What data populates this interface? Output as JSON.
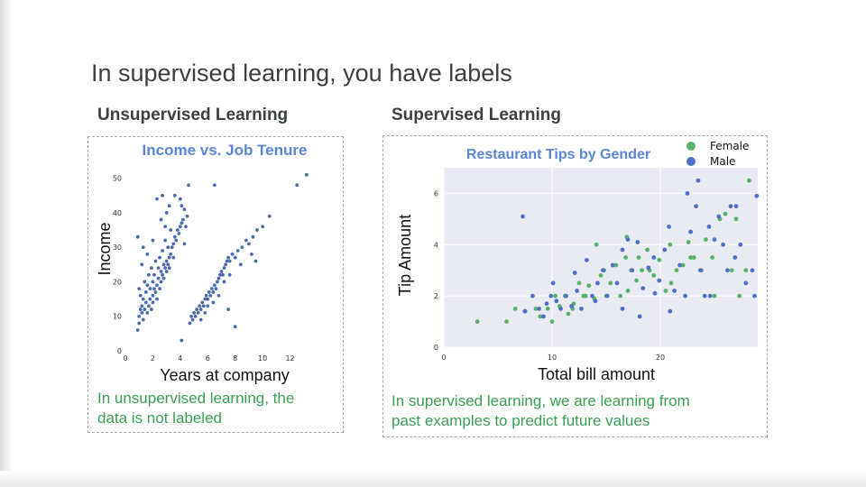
{
  "slide": {
    "title": "In supervised learning, you have labels",
    "left_heading": "Unsupervised Learning",
    "right_heading": "Supervised Learning",
    "left_caption": [
      "In unsupervised learning, the",
      "data is not labeled"
    ],
    "right_caption": [
      "In supervised learning, we are learning from",
      "past examples to predict future values"
    ]
  },
  "chart_data": [
    {
      "type": "scatter",
      "title": "Income vs. Job Tenure",
      "xlabel": "Years at company",
      "ylabel": "Income",
      "xlim": [
        0,
        14
      ],
      "ylim": [
        0,
        52
      ],
      "xticks": [
        0,
        2,
        4,
        6,
        8,
        10,
        12
      ],
      "yticks": [
        0,
        10,
        20,
        30,
        40,
        50
      ],
      "grid": false,
      "color": "#4c6aad",
      "points": [
        [
          0.9,
          6
        ],
        [
          1.0,
          8
        ],
        [
          1.0,
          10
        ],
        [
          1.1,
          12
        ],
        [
          1.1,
          16
        ],
        [
          1.0,
          18
        ],
        [
          1.2,
          11
        ],
        [
          1.2,
          13
        ],
        [
          1.3,
          9
        ],
        [
          1.3,
          15
        ],
        [
          1.4,
          12
        ],
        [
          1.4,
          20
        ],
        [
          1.5,
          14
        ],
        [
          1.5,
          17
        ],
        [
          1.6,
          11
        ],
        [
          1.6,
          19
        ],
        [
          1.7,
          13
        ],
        [
          1.7,
          22
        ],
        [
          1.8,
          15
        ],
        [
          1.8,
          18
        ],
        [
          1.9,
          12
        ],
        [
          1.9,
          24
        ],
        [
          2.0,
          16
        ],
        [
          2.0,
          20
        ],
        [
          2.0,
          14
        ],
        [
          2.1,
          18
        ],
        [
          2.1,
          22
        ],
        [
          2.2,
          17
        ],
        [
          2.2,
          26
        ],
        [
          2.3,
          19
        ],
        [
          2.3,
          15
        ],
        [
          2.4,
          21
        ],
        [
          2.4,
          24
        ],
        [
          2.5,
          18
        ],
        [
          2.5,
          27
        ],
        [
          2.6,
          20
        ],
        [
          2.6,
          23
        ],
        [
          2.7,
          22
        ],
        [
          2.7,
          29
        ],
        [
          2.8,
          21
        ],
        [
          2.8,
          25
        ],
        [
          2.9,
          24
        ],
        [
          2.9,
          32
        ],
        [
          3.0,
          23
        ],
        [
          3.0,
          26
        ],
        [
          3.1,
          25
        ],
        [
          3.1,
          30
        ],
        [
          3.2,
          27
        ],
        [
          3.2,
          24
        ],
        [
          3.3,
          28
        ],
        [
          3.3,
          35
        ],
        [
          3.4,
          30
        ],
        [
          3.5,
          31
        ],
        [
          3.5,
          27
        ],
        [
          3.6,
          33
        ],
        [
          3.7,
          32
        ],
        [
          3.8,
          35
        ],
        [
          3.9,
          34
        ],
        [
          4.0,
          36
        ],
        [
          4.1,
          37
        ],
        [
          4.2,
          38
        ],
        [
          4.3,
          41
        ],
        [
          4.4,
          36
        ],
        [
          4.5,
          39
        ],
        [
          2.3,
          44
        ],
        [
          2.7,
          45
        ],
        [
          3.0,
          40
        ],
        [
          3.2,
          42
        ],
        [
          3.6,
          45
        ],
        [
          4.0,
          44
        ],
        [
          4.1,
          42
        ],
        [
          0.9,
          33
        ],
        [
          1.3,
          30
        ],
        [
          1.6,
          28
        ],
        [
          2.0,
          32
        ],
        [
          1.2,
          25
        ],
        [
          2.6,
          38
        ],
        [
          2.9,
          36
        ],
        [
          4.3,
          31
        ],
        [
          4.6,
          48
        ],
        [
          4.1,
          3
        ],
        [
          4.7,
          8
        ],
        [
          4.8,
          10
        ],
        [
          4.9,
          9
        ],
        [
          5.0,
          11
        ],
        [
          5.1,
          10
        ],
        [
          5.2,
          12
        ],
        [
          5.3,
          11
        ],
        [
          5.4,
          13
        ],
        [
          5.5,
          12
        ],
        [
          5.6,
          14
        ],
        [
          5.7,
          13
        ],
        [
          5.8,
          15
        ],
        [
          5.9,
          16
        ],
        [
          6.0,
          15
        ],
        [
          6.1,
          17
        ],
        [
          6.2,
          16
        ],
        [
          6.3,
          18
        ],
        [
          6.4,
          17
        ],
        [
          6.5,
          19
        ],
        [
          6.6,
          18
        ],
        [
          6.7,
          20
        ],
        [
          6.8,
          21
        ],
        [
          6.9,
          22
        ],
        [
          7.0,
          23
        ],
        [
          7.1,
          22
        ],
        [
          7.2,
          24
        ],
        [
          7.3,
          25
        ],
        [
          7.4,
          26
        ],
        [
          7.5,
          27
        ],
        [
          7.6,
          26
        ],
        [
          7.8,
          28
        ],
        [
          8.0,
          27
        ],
        [
          8.2,
          29
        ],
        [
          8.5,
          30
        ],
        [
          8.8,
          32
        ],
        [
          9.0,
          31
        ],
        [
          9.3,
          33
        ],
        [
          9.6,
          35
        ],
        [
          10.0,
          36
        ],
        [
          10.5,
          39
        ],
        [
          9.5,
          26
        ],
        [
          8.0,
          7
        ],
        [
          7.5,
          12
        ],
        [
          6.5,
          48
        ],
        [
          12.5,
          48
        ],
        [
          13.2,
          51
        ],
        [
          5.5,
          9
        ],
        [
          6.0,
          13
        ],
        [
          6.4,
          14
        ],
        [
          5.8,
          11
        ],
        [
          6.8,
          16
        ],
        [
          7.2,
          20
        ],
        [
          7.6,
          22
        ],
        [
          8.4,
          25
        ],
        [
          9.2,
          28
        ]
      ]
    },
    {
      "type": "scatter",
      "title": "Restaurant Tips by Gender",
      "xlabel": "Total bill amount",
      "ylabel": "Tip Amount",
      "xlim": [
        0,
        29
      ],
      "ylim": [
        0,
        7
      ],
      "xticks": [
        0,
        10,
        20
      ],
      "yticks": [
        0,
        2,
        4,
        6
      ],
      "grid": true,
      "legend": "top-right",
      "series": [
        {
          "name": "Female",
          "color": "#57b36b",
          "points": [
            [
              3.1,
              1.0
            ],
            [
              5.8,
              1.0
            ],
            [
              7.5,
              1.4
            ],
            [
              8.5,
              1.5
            ],
            [
              9.6,
              1.5
            ],
            [
              10.3,
              2.0
            ],
            [
              10.7,
              1.6
            ],
            [
              11.2,
              2.0
            ],
            [
              11.9,
              1.5
            ],
            [
              12.5,
              2.5
            ],
            [
              12.9,
              2.0
            ],
            [
              13.4,
              2.4
            ],
            [
              13.9,
              1.9
            ],
            [
              14.5,
              2.8
            ],
            [
              14.8,
              3.0
            ],
            [
              15.4,
              2.5
            ],
            [
              15.9,
              3.2
            ],
            [
              16.3,
              2.0
            ],
            [
              16.8,
              3.5
            ],
            [
              17.3,
              3.0
            ],
            [
              17.8,
              2.6
            ],
            [
              18.3,
              3.0
            ],
            [
              18.8,
              3.8
            ],
            [
              19.4,
              2.8
            ],
            [
              19.9,
              3.4
            ],
            [
              20.5,
              2.2
            ],
            [
              20.9,
              4.0
            ],
            [
              21.5,
              3.0
            ],
            [
              22.1,
              3.2
            ],
            [
              22.6,
              4.1
            ],
            [
              23.1,
              3.5
            ],
            [
              23.8,
              3.0
            ],
            [
              24.2,
              4.2
            ],
            [
              24.8,
              3.5
            ],
            [
              25.5,
              5.0
            ],
            [
              26.0,
              5.2
            ],
            [
              26.6,
              3.0
            ],
            [
              27.0,
              5.0
            ],
            [
              27.3,
              2.0
            ],
            [
              27.9,
              3.0
            ],
            [
              28.2,
              6.5
            ],
            [
              16.9,
              4.3
            ],
            [
              14.1,
              4.0
            ],
            [
              11.5,
              1.3
            ],
            [
              6.6,
              1.5
            ],
            [
              8.9,
              1.2
            ],
            [
              13.1,
              2.0
            ],
            [
              18.0,
              3.5
            ],
            [
              21.0,
              2.5
            ],
            [
              25.0,
              2.0
            ],
            [
              10.0,
              1.0
            ],
            [
              15.0,
              2.0
            ],
            [
              19.0,
              3.0
            ],
            [
              22.8,
              3.5
            ],
            [
              12.0,
              1.7
            ],
            [
              17.0,
              2.2
            ]
          ]
        },
        {
          "name": "Male",
          "color": "#4f6fc8",
          "points": [
            [
              7.3,
              5.1
            ],
            [
              7.5,
              1.4
            ],
            [
              8.2,
              2.0
            ],
            [
              8.8,
              1.5
            ],
            [
              9.2,
              1.2
            ],
            [
              9.5,
              1.7
            ],
            [
              9.9,
              2.0
            ],
            [
              10.4,
              1.8
            ],
            [
              10.8,
              1.5
            ],
            [
              11.3,
              2.0
            ],
            [
              11.8,
              1.6
            ],
            [
              12.3,
              2.2
            ],
            [
              12.7,
              1.5
            ],
            [
              13.2,
              3.4
            ],
            [
              13.7,
              2.0
            ],
            [
              14.2,
              2.5
            ],
            [
              14.7,
              3.0
            ],
            [
              15.1,
              2.0
            ],
            [
              15.6,
              3.2
            ],
            [
              16.0,
              2.5
            ],
            [
              16.5,
              3.8
            ],
            [
              17.0,
              4.2
            ],
            [
              17.4,
              3.0
            ],
            [
              17.9,
              4.1
            ],
            [
              18.4,
              2.3
            ],
            [
              18.9,
              3.1
            ],
            [
              19.4,
              3.5
            ],
            [
              19.9,
              2.6
            ],
            [
              20.4,
              3.8
            ],
            [
              20.8,
              4.7
            ],
            [
              21.3,
              2.2
            ],
            [
              21.8,
              3.2
            ],
            [
              22.3,
              2.0
            ],
            [
              22.8,
              4.5
            ],
            [
              23.3,
              5.5
            ],
            [
              23.7,
              3.0
            ],
            [
              24.1,
              2.0
            ],
            [
              24.5,
              4.7
            ],
            [
              25.0,
              4.2
            ],
            [
              25.4,
              5.1
            ],
            [
              25.8,
              4.0
            ],
            [
              26.2,
              3.0
            ],
            [
              26.5,
              5.5
            ],
            [
              27.0,
              5.5
            ],
            [
              27.4,
              4.0
            ],
            [
              27.9,
              2.5
            ],
            [
              28.5,
              3.0
            ],
            [
              28.9,
              5.9
            ],
            [
              23.5,
              6.5
            ],
            [
              22.5,
              6.0
            ],
            [
              16.5,
              1.5
            ],
            [
              14.0,
              1.8
            ],
            [
              19.5,
              2.1
            ],
            [
              20.9,
              1.4
            ],
            [
              18.1,
              1.2
            ],
            [
              24.6,
              2.0
            ],
            [
              26.9,
              3.5
            ],
            [
              28.7,
              2.0
            ],
            [
              12.1,
              2.9
            ],
            [
              10.1,
              2.5
            ]
          ]
        }
      ]
    }
  ]
}
